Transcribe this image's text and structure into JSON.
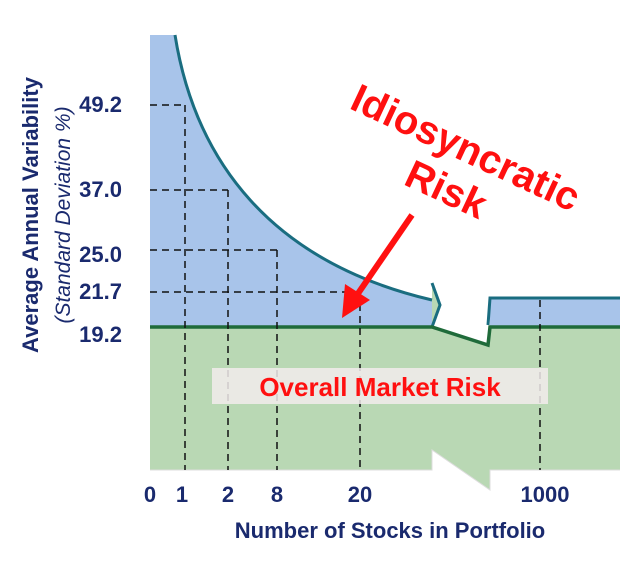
{
  "y_axis": {
    "title": "Average Annual Variability",
    "subtitle": "(Standard Deviation %)",
    "ticks": [
      "49.2",
      "37.0",
      "25.0",
      "21.7",
      "19.2"
    ]
  },
  "x_axis": {
    "title": "Number of Stocks in Portfolio",
    "ticks": [
      "0",
      "1",
      "2",
      "8",
      "20",
      "1000"
    ]
  },
  "annotations": {
    "idiosyncratic": [
      "Idiosyncratic",
      "Risk"
    ],
    "market": "Overall Market Risk"
  }
}
